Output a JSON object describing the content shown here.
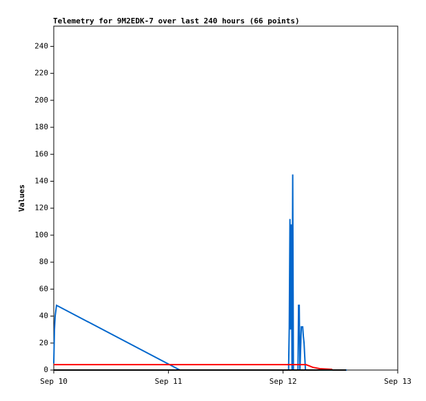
{
  "chart_data": {
    "type": "line",
    "title": "Telemetry for 9M2EDK-7 over last 240 hours (66 points)",
    "y_label": "Values",
    "xlim": [
      0,
      3
    ],
    "xticks": [
      {
        "value": 0,
        "label": "Sep 10"
      },
      {
        "value": 1,
        "label": "Sep 11"
      },
      {
        "value": 2,
        "label": "Sep 12"
      },
      {
        "value": 3,
        "label": "Sep 13"
      }
    ],
    "ylim": [
      0,
      255
    ],
    "yticks": [
      0,
      20,
      40,
      60,
      80,
      100,
      120,
      140,
      160,
      180,
      200,
      220,
      240
    ],
    "series": [
      {
        "color": "#0066cc",
        "x": [
          0,
          0.006,
          0.012,
          0.024,
          1.1,
          2.048,
          2.054,
          2.06,
          2.066,
          2.072,
          2.078,
          2.084,
          2.09,
          2.13,
          2.135,
          2.141,
          2.147,
          2.159,
          2.171,
          2.177,
          2.183,
          2.189,
          2.195,
          2.556
        ],
        "values": [
          5,
          30,
          40,
          48,
          0,
          0,
          32,
          112,
          30,
          108,
          0,
          145,
          0,
          0,
          48,
          48,
          0,
          32,
          32,
          25,
          20,
          10,
          0,
          0
        ]
      },
      {
        "color": "#ff0000",
        "x": [
          0,
          2.2,
          2.23,
          2.26,
          2.32,
          2.43
        ],
        "values": [
          4,
          4,
          3,
          2,
          1,
          0.5
        ]
      },
      {
        "color": "#000000",
        "x": [
          0,
          2.55
        ],
        "values": [
          0,
          0
        ]
      }
    ]
  }
}
